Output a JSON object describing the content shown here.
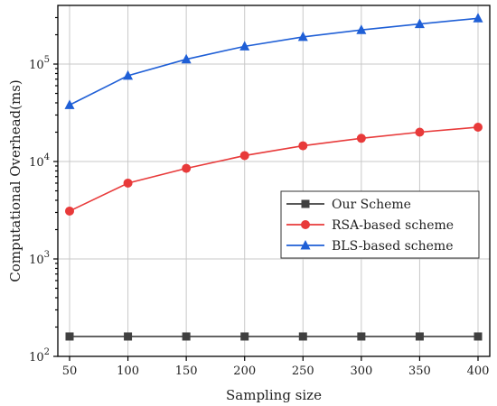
{
  "chart_data": {
    "type": "line",
    "xlabel": "Sampling size",
    "ylabel": "Computational Overhead(ms)",
    "x": [
      50,
      100,
      150,
      200,
      250,
      300,
      350,
      400
    ],
    "xlim": [
      50,
      400
    ],
    "yscale": "log",
    "ylim": [
      100,
      400000
    ],
    "y_tick_values": [
      100,
      1000,
      10000,
      100000
    ],
    "y_tick_labels": [
      {
        "base": "10",
        "exp": "2"
      },
      {
        "base": "10",
        "exp": "3"
      },
      {
        "base": "10",
        "exp": "4"
      },
      {
        "base": "10",
        "exp": "5"
      }
    ],
    "grid": true,
    "legend_position": "center-right",
    "series": [
      {
        "name": "Our Scheme",
        "color": "#404040",
        "marker": "square",
        "values": [
          160,
          160,
          160,
          160,
          160,
          160,
          160,
          160
        ]
      },
      {
        "name": "RSA-based scheme",
        "color": "#e83a3a",
        "marker": "circle",
        "values": [
          3100,
          6000,
          8500,
          11500,
          14500,
          17300,
          20000,
          22500
        ]
      },
      {
        "name": "BLS-based scheme",
        "color": "#1f5fd6",
        "marker": "triangle",
        "values": [
          38000,
          76000,
          112000,
          152000,
          190000,
          224000,
          258000,
          295000
        ]
      }
    ]
  }
}
